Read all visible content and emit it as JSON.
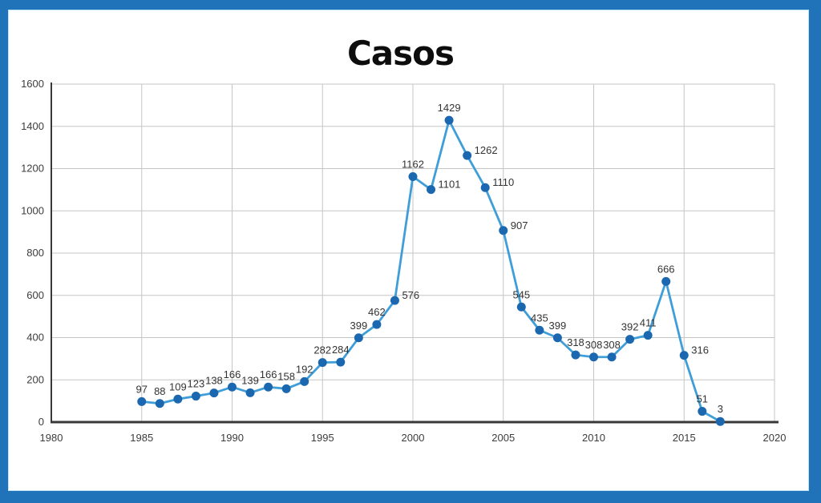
{
  "frame": {
    "border_color": "#2173B9",
    "background": "#FFFFFF"
  },
  "chart_data": {
    "type": "line",
    "title": "Casos",
    "xlabel": "",
    "ylabel": "",
    "x": [
      1985,
      1986,
      1987,
      1988,
      1989,
      1990,
      1991,
      1992,
      1993,
      1994,
      1995,
      1996,
      1997,
      1998,
      1999,
      2000,
      2001,
      2002,
      2003,
      2004,
      2005,
      2006,
      2007,
      2008,
      2009,
      2010,
      2011,
      2012,
      2013,
      2014,
      2015,
      2016,
      2017
    ],
    "values": [
      97,
      88,
      109,
      123,
      138,
      166,
      139,
      166,
      158,
      192,
      282,
      284,
      399,
      462,
      576,
      1162,
      1101,
      1429,
      1262,
      1110,
      907,
      545,
      435,
      399,
      318,
      308,
      308,
      392,
      411,
      666,
      316,
      51,
      3
    ],
    "label_placement": [
      "above",
      "above",
      "above",
      "above",
      "above",
      "above",
      "above",
      "above",
      "above",
      "above",
      "above",
      "above",
      "above",
      "above",
      "right",
      "above",
      "right",
      "above",
      "right",
      "right",
      "right",
      "above",
      "above",
      "above",
      "above",
      "above",
      "above",
      "above",
      "above",
      "above",
      "right",
      "above",
      "above"
    ],
    "xlim": [
      1980,
      2020
    ],
    "ylim": [
      0,
      1600
    ],
    "x_ticks": [
      1980,
      1985,
      1990,
      1995,
      2000,
      2005,
      2010,
      2015,
      2020
    ],
    "y_ticks": [
      0,
      200,
      400,
      600,
      800,
      1000,
      1200,
      1400,
      1600
    ],
    "grid": true,
    "legend": "none",
    "data_labels": true,
    "colors": {
      "line": "#3F9ED8",
      "marker": "#1B68B1",
      "grid": "#C6C6C6",
      "axis": "#383838",
      "tick_text": "#3C3C3C",
      "label_text": "#333333"
    }
  }
}
